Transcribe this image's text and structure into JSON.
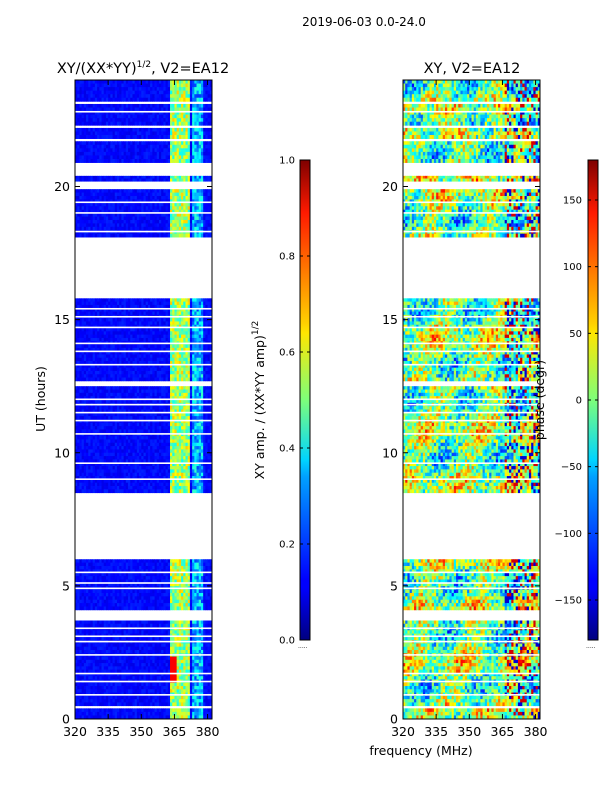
{
  "suptitle": "2019-06-03 0.0-24.0",
  "xlabel": "frequency (MHz)",
  "panels": [
    {
      "title_main": "XY/(XX*YY)",
      "title_sup": "1/2",
      "title_rest": ", V2=EA12",
      "ylabel": "UT (hours)",
      "colorbar_label_main": "XY amp. / (XX*YY amp)",
      "colorbar_label_sup": "1/2",
      "colorbar_ticks": [
        "0.0",
        "0.2",
        "0.4",
        "0.6",
        "0.8",
        "1.0"
      ],
      "colorbar_tick_values": [
        0.0,
        0.2,
        0.4,
        0.6,
        0.8,
        1.0
      ],
      "colorbar_range": [
        0.0,
        1.0
      ],
      "colorbar_bottom_note": "....."
    },
    {
      "title_main": "XY, V2=EA12",
      "title_sup": "",
      "title_rest": "",
      "ylabel": "",
      "colorbar_label_main": "phase (degr)",
      "colorbar_label_sup": "",
      "colorbar_ticks": [
        "150",
        "100",
        "50",
        "0",
        "−50",
        "−100",
        "−150"
      ],
      "colorbar_tick_values": [
        150,
        100,
        50,
        0,
        -50,
        -100,
        -150
      ],
      "colorbar_range": [
        -180,
        180
      ],
      "colorbar_bottom_note": "....."
    }
  ],
  "chart_data": [
    {
      "type": "heatmap",
      "title": "XY/(XX*YY)^1/2, V2=EA12",
      "xlabel": "",
      "ylabel": "UT (hours)",
      "xlim": [
        320,
        382
      ],
      "ylim": [
        0,
        24
      ],
      "xticks": [
        320,
        335,
        350,
        365,
        380
      ],
      "xtick_labels": [
        "320",
        "335",
        "350",
        "365",
        "380"
      ],
      "yticks": [
        0,
        5,
        10,
        15,
        20
      ],
      "ytick_labels": [
        "0",
        "5",
        "10",
        "15",
        "20"
      ],
      "colorbar": {
        "label": "XY amp. / (XX*YY amp)^1/2",
        "range": [
          0.0,
          1.0
        ]
      },
      "data_ut_ranges": [
        [
          0.0,
          0.4
        ],
        [
          0.5,
          3.7
        ],
        [
          4.1,
          6.0
        ],
        [
          8.5,
          12.5
        ],
        [
          12.7,
          15.8
        ],
        [
          18.1,
          19.9
        ],
        [
          20.2,
          20.4
        ],
        [
          20.9,
          21.7
        ],
        [
          21.8,
          22.2
        ],
        [
          22.3,
          23.1
        ],
        [
          23.2,
          24.0
        ]
      ],
      "gap_ut_lines": [
        0.9,
        1.4,
        1.7,
        2.4,
        2.9,
        3.1,
        3.4,
        4.9,
        5.1,
        5.5,
        9.0,
        9.6,
        10.7,
        11.2,
        11.5,
        11.8,
        12.0,
        13.3,
        13.8,
        14.1,
        14.7,
        15.1,
        15.4,
        18.3,
        19.0,
        19.4,
        22.8
      ],
      "value_summary": "background amplitude about 0.05-0.15; band 363-372 MHz about 0.35-0.7; peaks near 0.9 around 2 h"
    },
    {
      "type": "heatmap",
      "title": "XY, V2=EA12",
      "xlabel": "frequency (MHz)",
      "ylabel": "",
      "xlim": [
        320,
        382
      ],
      "ylim": [
        0,
        24
      ],
      "xticks": [
        320,
        335,
        350,
        365,
        380
      ],
      "xtick_labels": [
        "320",
        "335",
        "350",
        "365",
        "380"
      ],
      "yticks": [
        0,
        5,
        10,
        15,
        20
      ],
      "ytick_labels": [
        "0",
        "5",
        "10",
        "15",
        "20"
      ],
      "colorbar": {
        "label": "phase (degr)",
        "range": [
          -180,
          180
        ]
      },
      "data_ut_ranges": [
        [
          0.0,
          0.4
        ],
        [
          0.5,
          3.7
        ],
        [
          4.1,
          6.0
        ],
        [
          8.5,
          12.5
        ],
        [
          12.7,
          15.8
        ],
        [
          18.1,
          19.9
        ],
        [
          20.2,
          20.4
        ],
        [
          20.9,
          21.7
        ],
        [
          21.8,
          22.2
        ],
        [
          22.3,
          23.1
        ],
        [
          23.2,
          24.0
        ]
      ],
      "gap_ut_lines": [
        0.9,
        1.4,
        1.7,
        2.4,
        2.9,
        3.1,
        3.4,
        4.9,
        5.1,
        5.5,
        9.0,
        9.6,
        10.7,
        11.2,
        11.5,
        11.8,
        12.0,
        13.3,
        13.8,
        14.1,
        14.7,
        15.1,
        15.4,
        18.3,
        19.0,
        19.4,
        22.8
      ],
      "value_summary": "phase mostly -60 to +60 degrees with noisy structure; strong excursions near +-150 degrees above 365 MHz"
    }
  ]
}
